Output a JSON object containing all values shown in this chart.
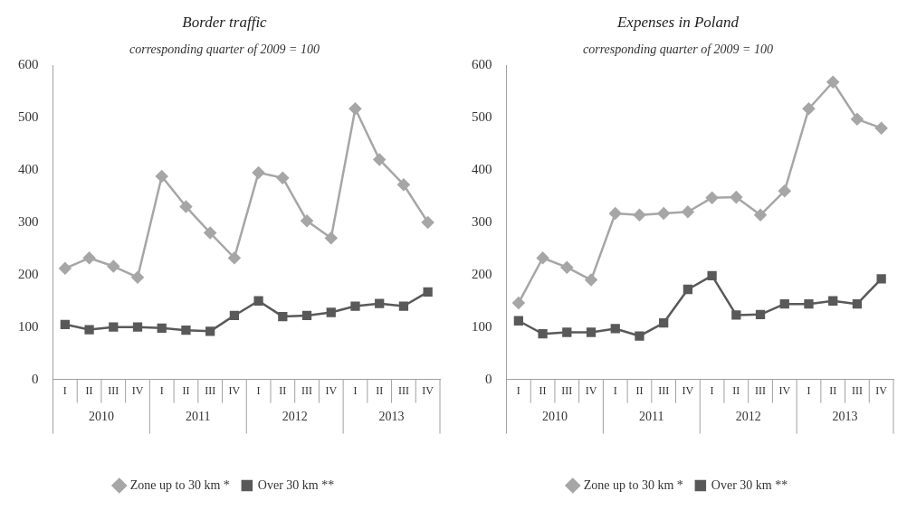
{
  "chart_data": [
    {
      "type": "line",
      "title": "Border traffic",
      "subtitle": "corresponding quarter of 2009 = 100",
      "categories": [
        "I",
        "II",
        "III",
        "IV",
        "I",
        "II",
        "III",
        "IV",
        "I",
        "II",
        "III",
        "IV",
        "I",
        "II",
        "III",
        "IV"
      ],
      "annotations": [
        "2010",
        "2011",
        "2012",
        "2013"
      ],
      "ylim": [
        0,
        600
      ],
      "yticks": [
        0,
        100,
        200,
        300,
        400,
        500,
        600
      ],
      "grid": false,
      "legend": "bottom",
      "series": [
        {
          "name": "Zone up to 30 km *",
          "color": "#a6a6a6",
          "marker": "diamond",
          "values": [
            212,
            232,
            216,
            195,
            388,
            330,
            280,
            232,
            395,
            385,
            303,
            270,
            517,
            420,
            372,
            300
          ]
        },
        {
          "name": "Over 30 km **",
          "color": "#595959",
          "marker": "square",
          "values": [
            105,
            95,
            100,
            100,
            98,
            94,
            92,
            122,
            150,
            120,
            122,
            128,
            140,
            145,
            140,
            167
          ]
        }
      ]
    },
    {
      "type": "line",
      "title": "Expenses in Poland",
      "subtitle": "corresponding quarter of 2009 = 100",
      "categories": [
        "I",
        "II",
        "III",
        "IV",
        "I",
        "II",
        "III",
        "IV",
        "I",
        "II",
        "III",
        "IV",
        "I",
        "II",
        "III",
        "IV"
      ],
      "annotations": [
        "2010",
        "2011",
        "2012",
        "2013"
      ],
      "ylim": [
        0,
        600
      ],
      "yticks": [
        0,
        100,
        200,
        300,
        400,
        500,
        600
      ],
      "grid": false,
      "legend": "bottom",
      "series": [
        {
          "name": "Zone up to 30 km *",
          "color": "#a6a6a6",
          "marker": "diamond",
          "values": [
            146,
            232,
            214,
            190,
            317,
            314,
            317,
            320,
            347,
            348,
            314,
            360,
            517,
            568,
            497,
            480
          ]
        },
        {
          "name": "Over 30 km **",
          "color": "#595959",
          "marker": "square",
          "values": [
            112,
            87,
            90,
            90,
            97,
            83,
            108,
            172,
            198,
            123,
            124,
            144,
            144,
            150,
            144,
            192
          ]
        }
      ]
    }
  ]
}
